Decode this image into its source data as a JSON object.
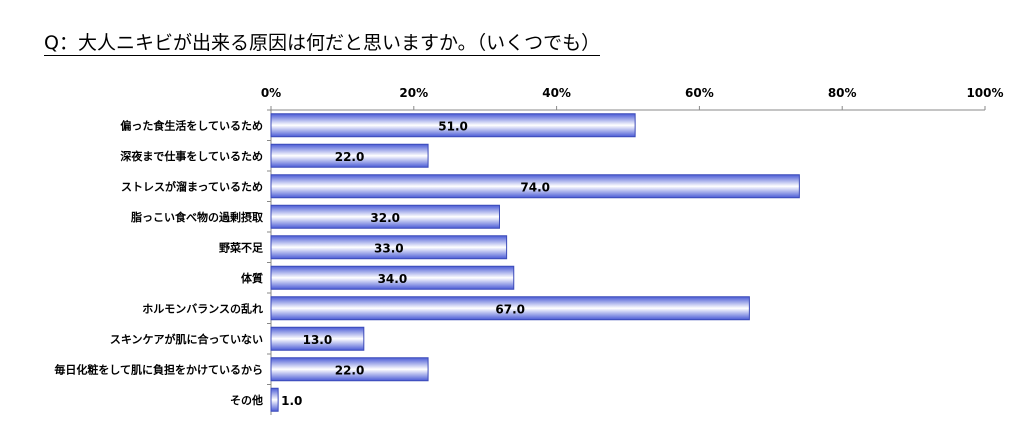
{
  "title": "Q：大人ニキビが出来る原因は何だと思いますか。（いくつでも）",
  "colors": {
    "bar_fill_edge": "#4a5bd6",
    "bar_fill_center": "#ffffff",
    "bar_stroke": "#3b4ab8",
    "axis": "#888888"
  },
  "chart_data": {
    "type": "bar",
    "orientation": "horizontal",
    "title": "Q：大人ニキビが出来る原因は何だと思いますか。（いくつでも）",
    "categories": [
      "偏った食生活をしているため",
      "深夜まで仕事をしているため",
      "ストレスが溜まっているため",
      "脂っこい食べ物の過剰摂取",
      "野菜不足",
      "体質",
      "ホルモンバランスの乱れ",
      "スキンケアが肌に合っていない",
      "毎日化粧をして肌に負担をかけているから",
      "その他"
    ],
    "values": [
      51.0,
      22.0,
      74.0,
      32.0,
      33.0,
      34.0,
      67.0,
      13.0,
      22.0,
      1.0
    ],
    "data_labels": [
      "51.0",
      "22.0",
      "74.0",
      "32.0",
      "33.0",
      "34.0",
      "67.0",
      "13.0",
      "22.0",
      "1.0"
    ],
    "xlim": [
      0,
      100
    ],
    "ticks": [
      0,
      20,
      40,
      60,
      80,
      100
    ],
    "tick_labels": [
      "0%",
      "20%",
      "40%",
      "60%",
      "80%",
      "100%"
    ],
    "xlabel": "",
    "ylabel": "",
    "grid": false,
    "tick_position": "top"
  }
}
